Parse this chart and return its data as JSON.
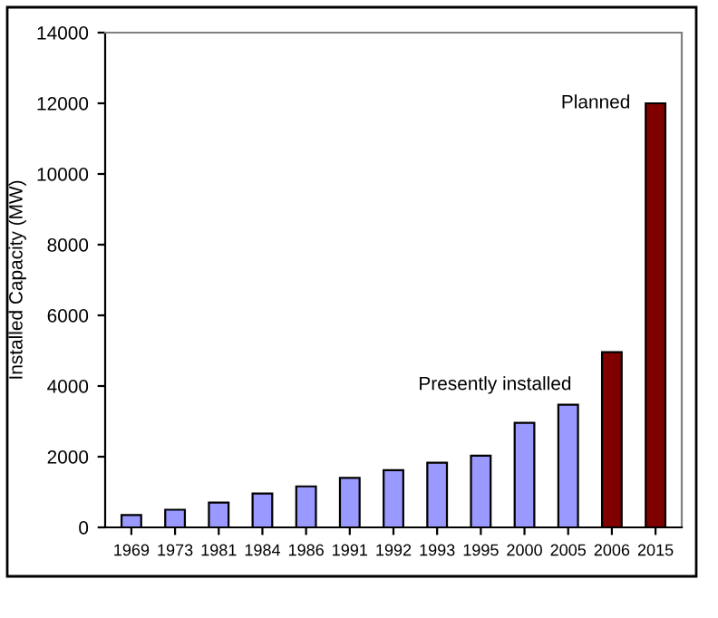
{
  "chart_data": {
    "type": "bar",
    "ylabel": "Installed Capacity (MW)",
    "categories": [
      "1969",
      "1973",
      "1981",
      "1984",
      "1986",
      "1991",
      "1992",
      "1993",
      "1995",
      "2000",
      "2005",
      "2006",
      "2015"
    ],
    "values": [
      350,
      500,
      700,
      960,
      1160,
      1400,
      1620,
      1830,
      2030,
      2960,
      3470,
      4960,
      12000
    ],
    "colors": [
      "#9999ff",
      "#9999ff",
      "#9999ff",
      "#9999ff",
      "#9999ff",
      "#9999ff",
      "#9999ff",
      "#9999ff",
      "#9999ff",
      "#9999ff",
      "#9999ff",
      "#800000",
      "#800000"
    ],
    "ylim": [
      0,
      14000
    ],
    "yticks": [
      0,
      2000,
      4000,
      6000,
      8000,
      10000,
      12000,
      14000
    ],
    "grid": false,
    "legend": false,
    "annotations": [
      "Presently installed",
      {
        "text": "Planned",
        "x": "2015",
        "y": 12000
      }
    ]
  }
}
